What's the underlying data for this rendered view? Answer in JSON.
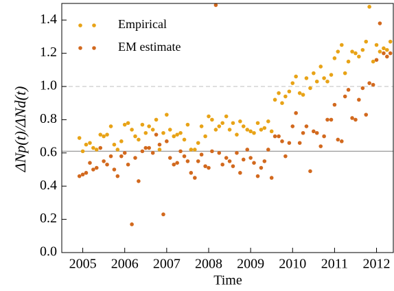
{
  "chart_data": {
    "type": "scatter",
    "xlabel": "Time",
    "ylabel": "ΔNp(t)/ΔNd(t)",
    "x": [
      2004.92,
      2005.0,
      2005.08,
      2005.17,
      2005.25,
      2005.33,
      2005.42,
      2005.5,
      2005.58,
      2005.67,
      2005.75,
      2005.83,
      2005.92,
      2006.0,
      2006.08,
      2006.17,
      2006.25,
      2006.33,
      2006.42,
      2006.5,
      2006.58,
      2006.67,
      2006.75,
      2006.83,
      2006.92,
      2007.0,
      2007.08,
      2007.17,
      2007.25,
      2007.33,
      2007.42,
      2007.5,
      2007.58,
      2007.67,
      2007.75,
      2007.83,
      2007.92,
      2008.0,
      2008.08,
      2008.17,
      2008.25,
      2008.33,
      2008.42,
      2008.5,
      2008.58,
      2008.67,
      2008.75,
      2008.83,
      2008.92,
      2009.0,
      2009.08,
      2009.17,
      2009.25,
      2009.33,
      2009.42,
      2009.5,
      2009.58,
      2009.67,
      2009.75,
      2009.83,
      2009.92,
      2010.0,
      2010.08,
      2010.17,
      2010.25,
      2010.33,
      2010.42,
      2010.5,
      2010.58,
      2010.67,
      2010.75,
      2010.83,
      2010.92,
      2011.0,
      2011.08,
      2011.17,
      2011.25,
      2011.33,
      2011.42,
      2011.5,
      2011.58,
      2011.67,
      2011.75,
      2011.83,
      2011.92,
      2012.0,
      2012.08,
      2012.17,
      2012.25,
      2012.33
    ],
    "series": [
      {
        "name": "Empirical",
        "color": "#e8a317",
        "values": [
          0.69,
          0.61,
          0.65,
          0.66,
          0.63,
          0.62,
          0.71,
          0.7,
          0.71,
          0.76,
          0.65,
          0.62,
          0.67,
          0.77,
          0.78,
          0.74,
          0.7,
          0.68,
          0.77,
          0.72,
          0.76,
          0.74,
          0.8,
          0.62,
          0.72,
          0.83,
          0.74,
          0.7,
          0.71,
          0.72,
          0.68,
          0.77,
          0.62,
          0.62,
          0.66,
          0.76,
          0.7,
          0.82,
          0.8,
          0.74,
          0.76,
          0.78,
          0.82,
          0.74,
          0.78,
          0.71,
          0.79,
          0.76,
          0.74,
          0.73,
          0.72,
          0.78,
          0.74,
          0.75,
          0.79,
          0.73,
          0.92,
          0.96,
          0.9,
          0.94,
          0.97,
          1.02,
          1.06,
          0.96,
          0.95,
          1.05,
          0.99,
          1.08,
          1.03,
          1.12,
          1.05,
          1.03,
          1.07,
          1.17,
          1.21,
          1.25,
          1.08,
          1.15,
          1.21,
          1.2,
          1.18,
          1.22,
          1.27,
          1.48,
          1.15,
          1.25,
          1.21,
          1.23,
          1.22,
          1.27
        ]
      },
      {
        "name": "EM estimate",
        "color": "#d2691e",
        "values": [
          0.46,
          0.47,
          0.48,
          0.54,
          0.5,
          0.51,
          0.63,
          0.55,
          0.53,
          0.58,
          0.5,
          0.46,
          0.58,
          0.6,
          0.53,
          0.17,
          0.57,
          0.43,
          0.61,
          0.63,
          0.63,
          0.6,
          0.71,
          0.65,
          0.23,
          0.67,
          0.57,
          0.53,
          0.54,
          0.61,
          0.58,
          0.55,
          0.48,
          0.45,
          0.55,
          0.59,
          0.52,
          0.51,
          0.61,
          1.49,
          0.6,
          0.53,
          0.57,
          0.55,
          0.52,
          0.6,
          0.48,
          0.56,
          0.62,
          0.57,
          0.54,
          0.46,
          0.51,
          0.55,
          0.62,
          0.45,
          0.7,
          0.7,
          0.67,
          0.58,
          0.66,
          0.76,
          0.84,
          0.66,
          0.72,
          0.76,
          0.49,
          0.73,
          0.72,
          0.64,
          0.7,
          0.8,
          0.8,
          0.89,
          0.68,
          0.67,
          0.94,
          0.98,
          0.81,
          0.8,
          0.92,
          0.99,
          0.83,
          1.02,
          1.01,
          1.16,
          1.38,
          1.2,
          1.18,
          1.2
        ]
      }
    ],
    "hlines": [
      {
        "value": 0.61,
        "color": "#999999",
        "style": "solid"
      },
      {
        "value": 1.0,
        "color": "#cccccc",
        "style": "dashed"
      }
    ],
    "xlim": [
      2004.5,
      2012.4
    ],
    "ylim": [
      0,
      1.5
    ],
    "xticks": [
      2005,
      2006,
      2007,
      2008,
      2009,
      2010,
      2011,
      2012
    ],
    "yticks": [
      {
        "value": 0,
        "label": "0.0"
      },
      0.2,
      0.4,
      0.6,
      0.8,
      {
        "value": 1,
        "label": "1.0"
      },
      1.2,
      1.4
    ],
    "legend": "upper left"
  }
}
